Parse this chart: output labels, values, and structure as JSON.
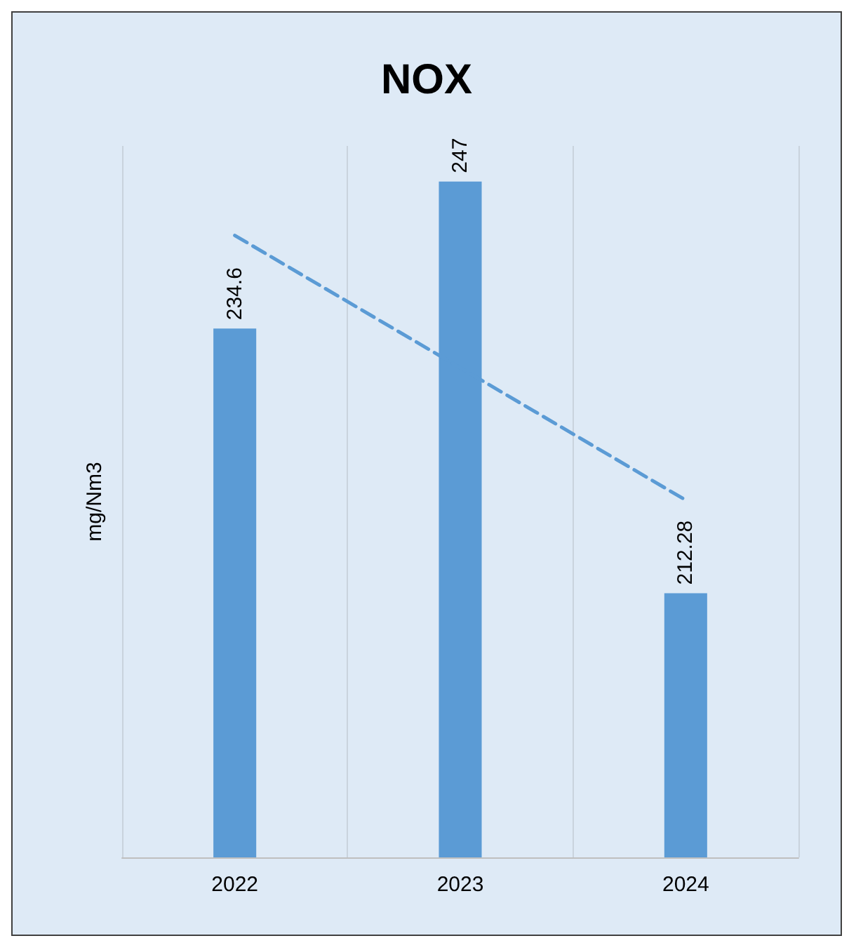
{
  "chart_data": {
    "type": "bar",
    "title": "NOX",
    "ylabel": "mg/Nm3",
    "categories": [
      "2022",
      "2023",
      "2024"
    ],
    "series": [
      {
        "color": "#5b9bd5",
        "values": [
          234.6,
          247,
          212.28
        ],
        "value_labels": [
          "234.6",
          "247",
          "212.28"
        ]
      },
      {
        "type": "line",
        "color": "#5b9bd5",
        "line_style": "dashed",
        "marker": "none",
        "values": [
          242.45,
          231.29,
          220.13
        ]
      }
    ],
    "ylim": [
      190,
      250
    ],
    "tick_labels": "x",
    "grid": "x"
  }
}
